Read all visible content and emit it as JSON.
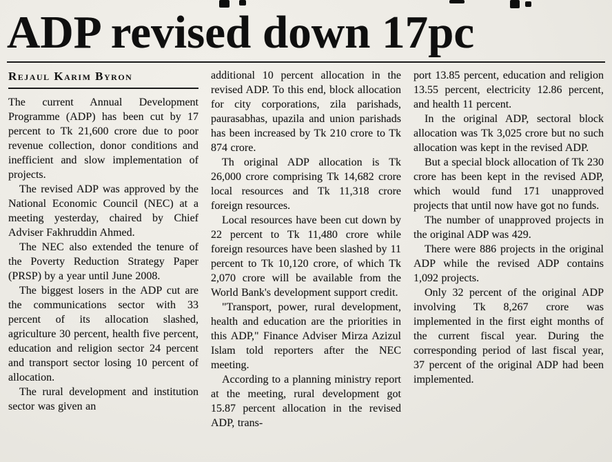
{
  "article": {
    "headline": "ADP revised down 17pc",
    "byline": "Rejaul Karim Byron",
    "columns": [
      {
        "paragraphs": [
          {
            "indent": false,
            "text": "The current Annual Development Programme (ADP) has been cut by 17 percent to Tk 21,600 crore due to poor revenue collection, donor conditions and inefficient and slow implementation of projects."
          },
          {
            "indent": true,
            "text": "The revised ADP was approved by the National Economic Council (NEC) at a meeting yesterday, chaired by Chief Adviser Fakhruddin Ahmed."
          },
          {
            "indent": true,
            "text": "The NEC also extended the tenure of the Poverty Reduction Strategy Paper (PRSP) by a year until June 2008."
          },
          {
            "indent": true,
            "text": "The biggest losers in the ADP cut are the communications sector with 33 percent of its allocation slashed, agriculture 30 percent, health five percent, education and religion sector 24 percent and transport sector losing 10 percent of allocation."
          },
          {
            "indent": true,
            "text": "The rural development and institution sector was given an"
          }
        ]
      },
      {
        "paragraphs": [
          {
            "indent": false,
            "text": "additional 10 percent allocation in the revised ADP. To this end, block allocation for city corporations, zila parishads, paurasabhas, upazila and union parishads has been increased by Tk 210 crore to Tk 874 crore."
          },
          {
            "indent": true,
            "text": "Th original ADP allocation is Tk 26,000 crore comprising Tk 14,682 crore local resources and Tk 11,318 crore foreign resources."
          },
          {
            "indent": true,
            "text": "Local resources have been cut down by 22 percent to Tk 11,480 crore while foreign resources have been slashed by 11 percent to Tk 10,120 crore, of which Tk 2,070 crore will be available from the World Bank's development support credit."
          },
          {
            "indent": true,
            "text": "\"Transport, power, rural development, health and education are the priorities in this ADP,\" Finance Adviser Mirza Azizul Islam told reporters after the NEC meeting."
          },
          {
            "indent": true,
            "text": "According to a planning ministry report at the meeting, rural development got 15.87 percent allocation in the revised ADP, trans-"
          }
        ]
      },
      {
        "paragraphs": [
          {
            "indent": false,
            "text": "port 13.85 percent, education and religion 13.55 percent, electricity 12.86 percent, and health 11 percent."
          },
          {
            "indent": true,
            "text": "In the original ADP, sectoral block allocation was Tk 3,025 crore but no such allocation was kept in the revised ADP."
          },
          {
            "indent": true,
            "text": "But a special block allocation of Tk 230 crore has been kept in the revised ADP, which would fund 171 unapproved projects that until now have got no funds."
          },
          {
            "indent": true,
            "text": "The number of unapproved projects in the original ADP was 429."
          },
          {
            "indent": true,
            "text": "There were 886 projects in the original ADP while the revised ADP contains 1,092 projects."
          },
          {
            "indent": true,
            "text": "Only 32 percent of the original ADP involving Tk 8,267 crore was implemented in the first eight months of the current fiscal year. During the corresponding period of last fiscal year, 37 percent of the original ADP had been implemented."
          }
        ]
      }
    ]
  }
}
